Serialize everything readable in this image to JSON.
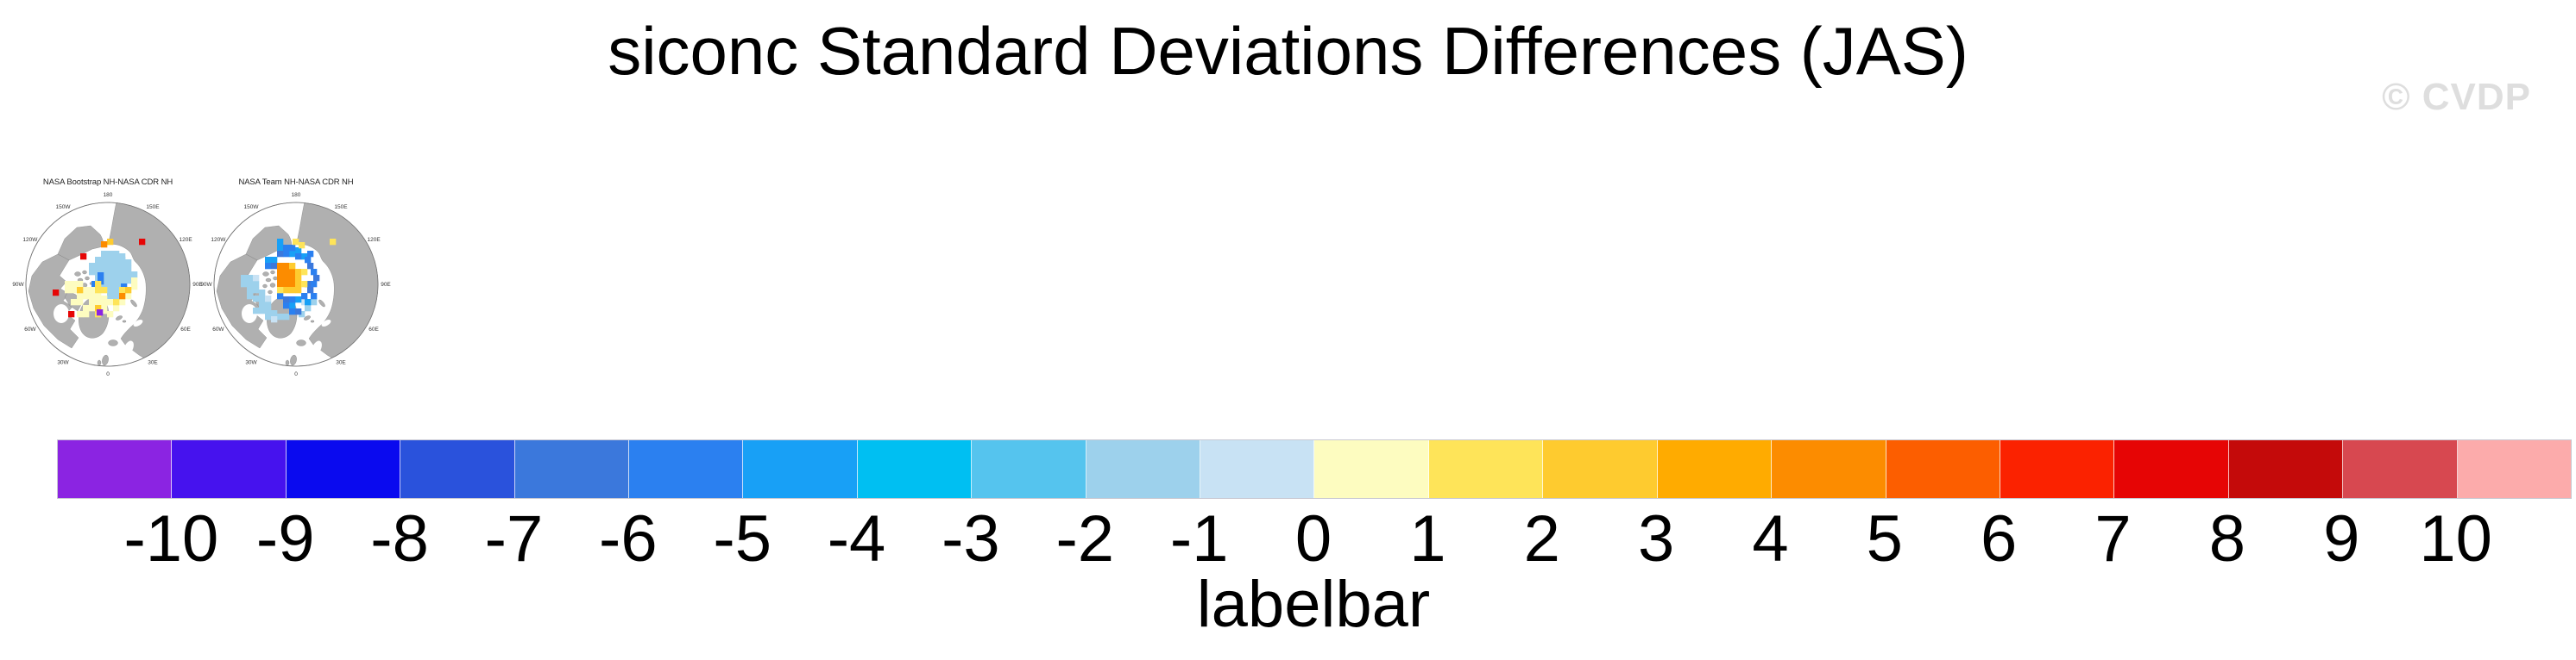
{
  "page": {
    "title": "siconc Standard Deviations Differences (JAS)",
    "watermark": "© CVDP",
    "colors": {
      "background": "#FFFFFF",
      "watermark": "#DEDEDE",
      "land": "#B0B0B0",
      "ocean": "#FFFFFF"
    }
  },
  "chart_data": {
    "type": "heatmap",
    "subtype": "polar-stereographic-difference-maps",
    "variable": "siconc",
    "season": "JAS",
    "panels": [
      {
        "title": "NASA Bootstrap NH-NASA CDR NH",
        "patch_groups": [
          {
            "v": -1.5,
            "cells": [
              [
                90,
                59
              ],
              [
                97,
                59
              ],
              [
                104,
                59
              ],
              [
                111,
                62
              ],
              [
                83,
                66
              ],
              [
                90,
                66
              ],
              [
                97,
                66
              ],
              [
                104,
                66
              ],
              [
                111,
                66
              ],
              [
                118,
                69
              ],
              [
                76,
                73
              ],
              [
                83,
                73
              ],
              [
                90,
                73
              ],
              [
                97,
                73
              ],
              [
                104,
                73
              ],
              [
                111,
                73
              ],
              [
                118,
                76
              ],
              [
                76,
                80
              ],
              [
                83,
                80
              ],
              [
                90,
                80
              ],
              [
                97,
                80
              ],
              [
                104,
                80
              ],
              [
                111,
                80
              ],
              [
                118,
                83
              ],
              [
                125,
                83
              ],
              [
                83,
                87
              ],
              [
                90,
                87
              ],
              [
                97,
                87
              ],
              [
                104,
                87
              ],
              [
                111,
                87
              ],
              [
                118,
                90
              ],
              [
                90,
                94
              ],
              [
                97,
                94
              ],
              [
                104,
                94
              ],
              [
                111,
                94
              ],
              [
                97,
                101
              ],
              [
                104,
                101
              ],
              [
                97,
                108
              ],
              [
                104,
                108
              ]
            ]
          },
          {
            "v": -5.5,
            "cells": [
              [
                86,
                84
              ],
              [
                86,
                91
              ],
              [
                79,
                94
              ],
              [
                113,
                97
              ]
            ]
          },
          {
            "v": 0.5,
            "cells": [
              [
                48,
                94
              ],
              [
                55,
                94
              ],
              [
                62,
                94
              ],
              [
                48,
                101
              ],
              [
                55,
                101
              ],
              [
                69,
                101
              ],
              [
                76,
                101
              ],
              [
                62,
                108
              ],
              [
                69,
                108
              ],
              [
                76,
                108
              ],
              [
                83,
                108
              ],
              [
                90,
                111
              ],
              [
                55,
                115
              ],
              [
                62,
                115
              ],
              [
                76,
                115
              ],
              [
                83,
                115
              ],
              [
                97,
                115
              ],
              [
                90,
                118
              ],
              [
                69,
                122
              ],
              [
                76,
                122
              ],
              [
                104,
                122
              ],
              [
                90,
                125
              ],
              [
                62,
                129
              ],
              [
                69,
                129
              ],
              [
                97,
                129
              ],
              [
                111,
                115
              ],
              [
                118,
                108
              ],
              [
                125,
                97
              ],
              [
                125,
                90
              ]
            ]
          },
          {
            "v": 1.5,
            "cells": [
              [
                83,
                94
              ],
              [
                83,
                101
              ],
              [
                90,
                101
              ],
              [
                111,
                101
              ],
              [
                104,
                115
              ],
              [
                83,
                129
              ]
            ]
          },
          {
            "v": 2.5,
            "cells": [
              [
                97,
                45
              ],
              [
                62,
                101
              ],
              [
                83,
                122
              ],
              [
                118,
                101
              ]
            ]
          },
          {
            "v": 4.5,
            "cells": [
              [
                90,
                48
              ],
              [
                111,
                108
              ]
            ]
          },
          {
            "v": 7.5,
            "cells": [
              [
                66,
                62
              ],
              [
                34,
                104
              ],
              [
                134,
                45
              ],
              [
                52,
                129
              ]
            ]
          },
          {
            "v": -10.5,
            "cells": [
              [
                85,
                127
              ]
            ]
          }
        ]
      },
      {
        "title": "NASA Team NH-NASA CDR NH",
        "patch_groups": [
          {
            "v": -1.5,
            "cells": [
              [
                34,
                87
              ],
              [
                41,
                87
              ],
              [
                34,
                94
              ],
              [
                41,
                94
              ],
              [
                48,
                94
              ],
              [
                41,
                101
              ],
              [
                48,
                101
              ],
              [
                55,
                104
              ],
              [
                41,
                108
              ],
              [
                48,
                111
              ],
              [
                55,
                111
              ],
              [
                55,
                118
              ],
              [
                62,
                118
              ],
              [
                48,
                125
              ],
              [
                55,
                125
              ],
              [
                62,
                125
              ],
              [
                69,
                128
              ],
              [
                62,
                132
              ],
              [
                76,
                132
              ],
              [
                83,
                132
              ],
              [
                108,
                122
              ],
              [
                115,
                115
              ],
              [
                101,
                129
              ]
            ]
          },
          {
            "v": -0.5,
            "cells": [
              [
                48,
                87
              ],
              [
                62,
                111
              ],
              [
                69,
                135
              ],
              [
                104,
                115
              ]
            ]
          },
          {
            "v": -4.5,
            "cells": [
              [
                76,
                45
              ],
              [
                76,
                52
              ],
              [
                97,
                55
              ],
              [
                90,
                59
              ],
              [
                104,
                62
              ],
              [
                62,
                66
              ],
              [
                69,
                66
              ],
              [
                108,
                115
              ],
              [
                97,
                112
              ],
              [
                90,
                119
              ]
            ]
          },
          {
            "v": -5.5,
            "cells": [
              [
                83,
                52
              ],
              [
                90,
                52
              ],
              [
                111,
                59
              ],
              [
                83,
                59
              ],
              [
                97,
                62
              ],
              [
                108,
                66
              ],
              [
                62,
                73
              ],
              [
                115,
                80
              ],
              [
                115,
                94
              ],
              [
                115,
                108
              ],
              [
                104,
                108
              ],
              [
                76,
                108
              ],
              [
                90,
                112
              ],
              [
                83,
                119
              ],
              [
                90,
                126
              ]
            ]
          },
          {
            "v": -6.5,
            "cells": [
              [
                76,
                59
              ],
              [
                69,
                73
              ],
              [
                111,
                73
              ],
              [
                118,
                87
              ],
              [
                108,
                94
              ],
              [
                111,
                101
              ],
              [
                83,
                112
              ],
              [
                97,
                126
              ]
            ]
          },
          {
            "v": 4.5,
            "cells": [
              [
                76,
                73
              ],
              [
                83,
                73
              ],
              [
                76,
                80
              ],
              [
                83,
                80
              ],
              [
                90,
                80
              ],
              [
                76,
                87
              ],
              [
                83,
                87
              ],
              [
                90,
                87
              ],
              [
                76,
                94
              ],
              [
                83,
                94
              ],
              [
                90,
                94
              ]
            ]
          },
          {
            "v": 2.5,
            "cells": [
              [
                90,
                73
              ],
              [
                97,
                80
              ],
              [
                97,
                87
              ],
              [
                97,
                94
              ],
              [
                83,
                101
              ],
              [
                90,
                101
              ],
              [
                97,
                101
              ]
            ]
          },
          {
            "v": 1.5,
            "cells": [
              [
                104,
                80
              ],
              [
                104,
                94
              ],
              [
                76,
                101
              ],
              [
                94,
                45
              ],
              [
                101,
                49
              ],
              [
                137,
                45
              ]
            ]
          }
        ]
      }
    ],
    "ring_labels": [
      {
        "text": "180",
        "angle": 0
      },
      {
        "text": "150E",
        "angle": 30
      },
      {
        "text": "120E",
        "angle": 60
      },
      {
        "text": "90E",
        "angle": 90
      },
      {
        "text": "60E",
        "angle": 120
      },
      {
        "text": "30E",
        "angle": 150
      },
      {
        "text": "0",
        "angle": 180
      },
      {
        "text": "30W",
        "angle": 210
      },
      {
        "text": "60W",
        "angle": 240
      },
      {
        "text": "90W",
        "angle": 270
      },
      {
        "text": "120W",
        "angle": 300
      },
      {
        "text": "150W",
        "angle": 330
      }
    ],
    "labelbar": {
      "title": "labelbar",
      "ticks": [
        "-10",
        "-9",
        "-8",
        "-7",
        "-6",
        "-5",
        "-4",
        "-3",
        "-2",
        "-1",
        "0",
        "1",
        "2",
        "3",
        "4",
        "5",
        "6",
        "7",
        "8",
        "9",
        "10"
      ],
      "value_range": [
        -11,
        11
      ],
      "colors": [
        "#8B24E2",
        "#4612EE",
        "#0A0AEF",
        "#2A52DC",
        "#3B78DC",
        "#2B80F0",
        "#18A0F6",
        "#00BFF2",
        "#55C4EE",
        "#9DD1EC",
        "#C8E2F4",
        "#FDFCC0",
        "#FEE459",
        "#FECB2F",
        "#FFAB00",
        "#FC8C00",
        "#FC5E00",
        "#FB2200",
        "#E60505",
        "#C40A0A",
        "#D74850",
        "#FCABAB"
      ]
    }
  }
}
